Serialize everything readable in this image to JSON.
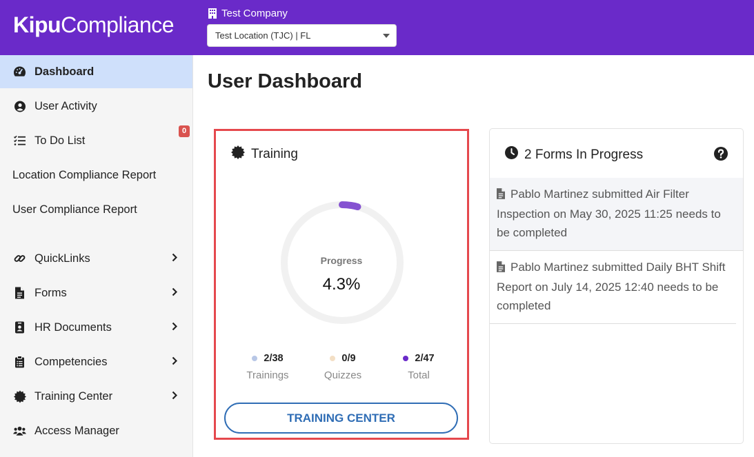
{
  "app": {
    "logo_bold": "Kipu",
    "logo_light": "Compliance",
    "company": "Test Company",
    "location_selected": "Test Location (TJC) | FL",
    "brand_color": "#6a2ac9"
  },
  "sidebar": {
    "items": [
      {
        "label": "Dashboard",
        "icon": "gauge-icon",
        "active": true
      },
      {
        "label": "User Activity",
        "icon": "user-circle-icon"
      },
      {
        "label": "To Do List",
        "icon": "list-check-icon",
        "badge": "0"
      },
      {
        "label": "Location Compliance Report"
      },
      {
        "label": "User Compliance Report"
      },
      {
        "label": "QuickLinks",
        "icon": "link-icon",
        "expandable": true
      },
      {
        "label": "Forms",
        "icon": "file-icon",
        "expandable": true
      },
      {
        "label": "HR Documents",
        "icon": "id-badge-icon",
        "expandable": true
      },
      {
        "label": "Competencies",
        "icon": "clipboard-list-icon",
        "expandable": true
      },
      {
        "label": "Training Center",
        "icon": "certificate-icon",
        "expandable": true
      },
      {
        "label": "Access Manager",
        "icon": "users-icon"
      }
    ]
  },
  "main": {
    "title": "User Dashboard",
    "training": {
      "title": "Training",
      "progress_label": "Progress",
      "progress_value": "4.3%",
      "progress_fraction": 0.043,
      "stats": [
        {
          "value": "2/38",
          "caption": "Trainings",
          "color": "#b8c7e6"
        },
        {
          "value": "0/9",
          "caption": "Quizzes",
          "color": "#f3dfc5"
        },
        {
          "value": "2/47",
          "caption": "Total",
          "color": "#6a2ac9"
        }
      ],
      "button": "TRAINING CENTER"
    },
    "forms": {
      "title": "2 Forms In Progress",
      "items": [
        "Pablo Martinez submitted Air Filter Inspection on May 30, 2025 11:25 needs to be completed",
        "Pablo Martinez submitted Daily BHT Shift Report on July 14, 2025 12:40 needs to be completed"
      ]
    }
  }
}
